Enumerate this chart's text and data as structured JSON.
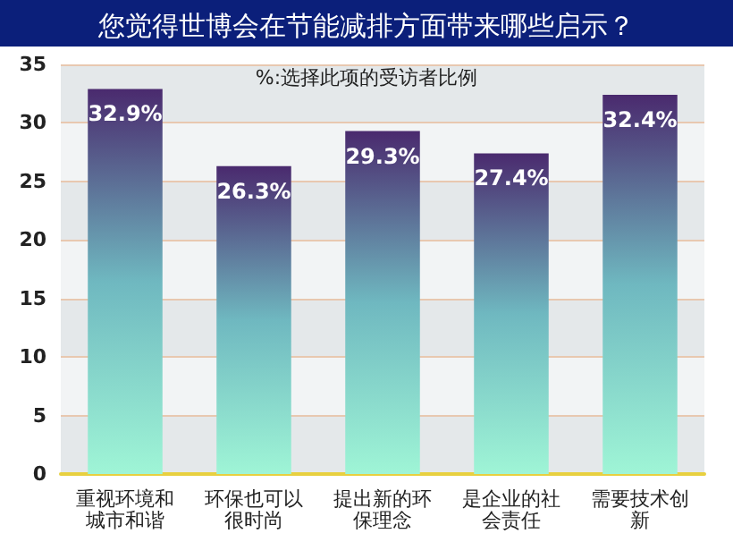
{
  "chart_data": {
    "type": "bar",
    "title": "您觉得世博会在节能减排方面带来哪些启示？",
    "annotations": [
      "%:选择此项的受访者比例"
    ],
    "categories": [
      "重视环境和城市和谐",
      "环保也可以很时尚",
      "提出新的环保理念",
      "是企业的社会责任",
      "需要技术创新"
    ],
    "values": [
      32.9,
      26.3,
      29.3,
      27.4,
      32.4
    ],
    "value_labels": [
      "32.9%",
      "26.3%",
      "29.3%",
      "27.4%",
      "32.4%"
    ],
    "color": "#9ff5d6",
    "ylim": [
      0,
      35
    ],
    "yticks": [
      0,
      5,
      10,
      15,
      20,
      25,
      30,
      35
    ],
    "grid": "y"
  }
}
